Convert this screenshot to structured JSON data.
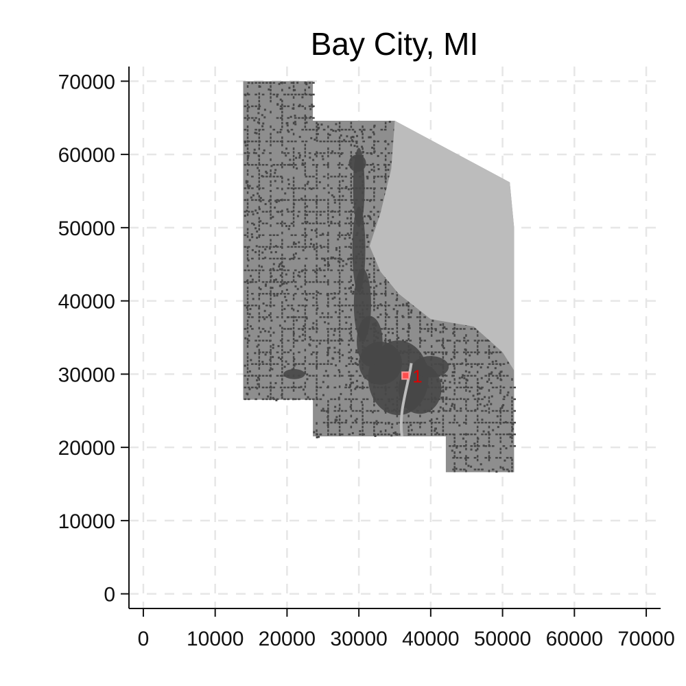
{
  "title": "Bay City, MI",
  "colors": {
    "land": "#8e8e8e",
    "water": "#bcbcbc",
    "urban": "#474747",
    "grid": "#e6e6e6",
    "axis": "#111111",
    "marker": "#ff4d4d",
    "marker_label": "#e00000"
  },
  "chart_data": {
    "type": "map",
    "title": "Bay City, MI",
    "xlim": [
      -2000,
      72000
    ],
    "ylim": [
      -2000,
      72000
    ],
    "grid": true,
    "x_ticks": [
      {
        "value": 0,
        "label": "0"
      },
      {
        "value": 10000,
        "label": "10000"
      },
      {
        "value": 20000,
        "label": "20000"
      },
      {
        "value": 30000,
        "label": "30000"
      },
      {
        "value": 40000,
        "label": "40000"
      },
      {
        "value": 50000,
        "label": "50000"
      },
      {
        "value": 60000,
        "label": "60000"
      },
      {
        "value": 70000,
        "label": "70000"
      }
    ],
    "y_ticks": [
      {
        "value": 0,
        "label": "0"
      },
      {
        "value": 10000,
        "label": "10000"
      },
      {
        "value": 20000,
        "label": "20000"
      },
      {
        "value": 30000,
        "label": "30000"
      },
      {
        "value": 40000,
        "label": "40000"
      },
      {
        "value": 50000,
        "label": "50000"
      },
      {
        "value": 60000,
        "label": "60000"
      },
      {
        "value": 70000,
        "label": "70000"
      }
    ],
    "land_outline": [
      [
        13900,
        70000
      ],
      [
        23600,
        70000
      ],
      [
        23600,
        64600
      ],
      [
        35000,
        64600
      ],
      [
        51000,
        56200
      ],
      [
        51600,
        50000
      ],
      [
        51600,
        16600
      ],
      [
        42100,
        16600
      ],
      [
        42100,
        21500
      ],
      [
        23600,
        21500
      ],
      [
        23600,
        26500
      ],
      [
        13900,
        26500
      ]
    ],
    "water_outline": [
      [
        35000,
        64600
      ],
      [
        51000,
        56200
      ],
      [
        51600,
        50000
      ],
      [
        51600,
        30500
      ],
      [
        50000,
        33000
      ],
      [
        46000,
        36500
      ],
      [
        40000,
        37500
      ],
      [
        35500,
        41000
      ],
      [
        33000,
        44000
      ],
      [
        31500,
        47500
      ],
      [
        33000,
        52000
      ],
      [
        34500,
        58000
      ]
    ],
    "points": [
      {
        "label": "1",
        "x": 36500,
        "y": 29800
      }
    ]
  }
}
